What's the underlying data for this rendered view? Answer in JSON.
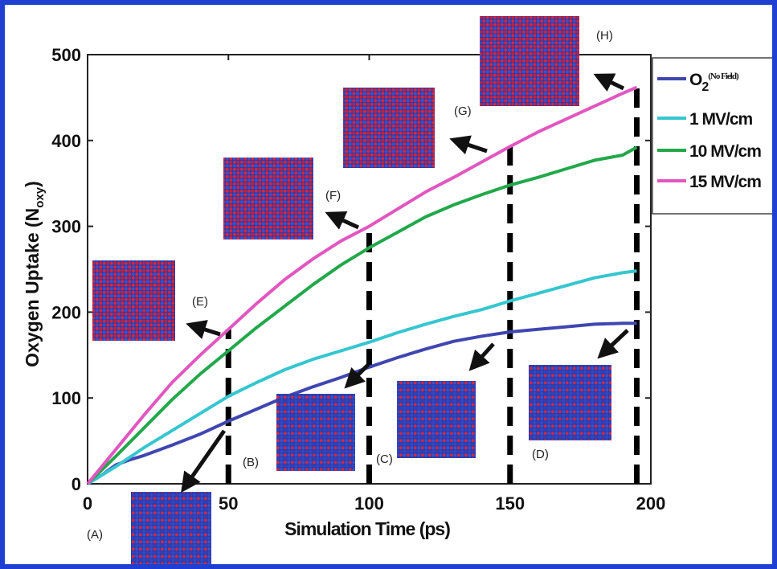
{
  "colors": {
    "frame": "#1f3fd2",
    "series": [
      "#4046b0",
      "#36c6cf",
      "#22a84a",
      "#e256c0"
    ],
    "arrows": "#111111",
    "snapshot_base": "#2a3bb0",
    "snapshot_dots": "#d8263c"
  },
  "chart_data": {
    "type": "line",
    "xlabel": "Simulation Time (ps)",
    "ylabel_main": "Oxygen Uptake (N",
    "ylabel_sub": "oxy",
    "ylabel_end": ")",
    "xlim": [
      0,
      200
    ],
    "ylim": [
      0,
      500
    ],
    "x_ticks": [
      "0",
      "50",
      "100",
      "150",
      "200"
    ],
    "y_ticks": [
      "0",
      "100",
      "200",
      "300",
      "400",
      "500"
    ],
    "grid": false,
    "legend_placement": "right",
    "series": [
      {
        "name": "O",
        "name_sub": "2",
        "name_sup": "(No Field)",
        "color": "#4046b0",
        "x": [
          0,
          5,
          10,
          15,
          20,
          30,
          40,
          50,
          60,
          70,
          80,
          90,
          100,
          110,
          120,
          130,
          140,
          150,
          160,
          170,
          180,
          190,
          195
        ],
        "y": [
          0,
          10,
          22,
          28,
          33,
          45,
          58,
          73,
          87,
          101,
          113,
          124,
          136,
          147,
          157,
          166,
          172,
          177,
          180,
          183,
          186,
          187,
          187
        ]
      },
      {
        "name": "1 MV/cm",
        "color": "#36c6cf",
        "x": [
          0,
          10,
          20,
          30,
          40,
          50,
          60,
          70,
          80,
          90,
          100,
          110,
          120,
          130,
          140,
          150,
          160,
          170,
          180,
          190,
          195
        ],
        "y": [
          0,
          20,
          42,
          62,
          82,
          102,
          118,
          133,
          145,
          155,
          165,
          176,
          186,
          195,
          203,
          213,
          222,
          231,
          240,
          246,
          248
        ]
      },
      {
        "name": "10 MV/cm",
        "color": "#22a84a",
        "x": [
          0,
          10,
          20,
          30,
          40,
          50,
          60,
          70,
          80,
          90,
          100,
          110,
          120,
          130,
          140,
          150,
          160,
          170,
          180,
          190,
          195
        ],
        "y": [
          0,
          32,
          65,
          98,
          128,
          155,
          182,
          207,
          232,
          255,
          275,
          293,
          311,
          325,
          337,
          348,
          357,
          367,
          377,
          383,
          392
        ]
      },
      {
        "name": "15 MV/cm",
        "color": "#e256c0",
        "x": [
          0,
          10,
          20,
          30,
          40,
          50,
          60,
          70,
          80,
          90,
          100,
          110,
          120,
          130,
          140,
          150,
          160,
          170,
          180,
          190,
          195
        ],
        "y": [
          0,
          40,
          80,
          118,
          150,
          180,
          210,
          238,
          262,
          283,
          300,
          320,
          340,
          357,
          375,
          393,
          410,
          425,
          440,
          455,
          462
        ]
      }
    ],
    "snapshot_times_ps": [
      50,
      100,
      150,
      195
    ],
    "snapshot_labels": [
      "(A)",
      "(B)",
      "(C)",
      "(D)",
      "(E)",
      "(F)",
      "(G)",
      "(H)"
    ]
  }
}
